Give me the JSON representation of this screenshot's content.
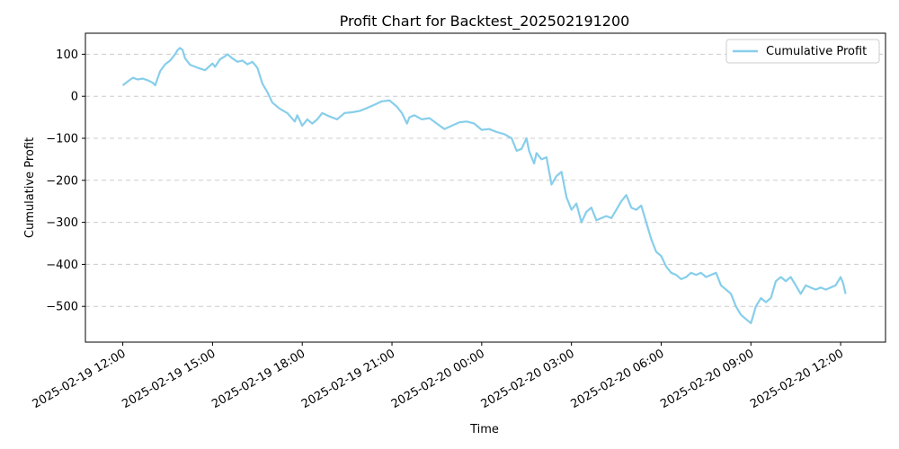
{
  "chart_data": {
    "type": "line",
    "title": "Profit Chart for Backtest_202502191200",
    "xlabel": "Time",
    "ylabel": "Cumulative Profit",
    "x_range": [
      "2025-02-19 10:45",
      "2025-02-20 13:30"
    ],
    "ylim": [
      -585,
      150
    ],
    "x_ticks": [
      "2025-02-19 12:00",
      "2025-02-19 15:00",
      "2025-02-19 18:00",
      "2025-02-19 21:00",
      "2025-02-20 00:00",
      "2025-02-20 03:00",
      "2025-02-20 06:00",
      "2025-02-20 09:00",
      "2025-02-20 12:00"
    ],
    "y_ticks": [
      100,
      0,
      -100,
      -200,
      -300,
      -400,
      -500
    ],
    "y_tick_labels": [
      "100",
      "0",
      "−100",
      "−200",
      "−300",
      "−400",
      "−500"
    ],
    "grid": "horizontal dashed",
    "legend_position": "top-right",
    "line_color": "#87ceeb",
    "series": [
      {
        "name": "Cumulative Profit",
        "points": [
          [
            "2025-02-19 12:00",
            26
          ],
          [
            "2025-02-19 12:10",
            35
          ],
          [
            "2025-02-19 12:20",
            44
          ],
          [
            "2025-02-19 12:30",
            40
          ],
          [
            "2025-02-19 12:40",
            42
          ],
          [
            "2025-02-19 12:50",
            38
          ],
          [
            "2025-02-19 13:00",
            32
          ],
          [
            "2025-02-19 13:05",
            26
          ],
          [
            "2025-02-19 13:15",
            60
          ],
          [
            "2025-02-19 13:25",
            76
          ],
          [
            "2025-02-19 13:35",
            85
          ],
          [
            "2025-02-19 13:45",
            100
          ],
          [
            "2025-02-19 13:50",
            110
          ],
          [
            "2025-02-19 13:55",
            115
          ],
          [
            "2025-02-19 14:00",
            110
          ],
          [
            "2025-02-19 14:05",
            90
          ],
          [
            "2025-02-19 14:15",
            75
          ],
          [
            "2025-02-19 14:30",
            68
          ],
          [
            "2025-02-19 14:45",
            62
          ],
          [
            "2025-02-19 15:00",
            78
          ],
          [
            "2025-02-19 15:05",
            70
          ],
          [
            "2025-02-19 15:15",
            88
          ],
          [
            "2025-02-19 15:25",
            95
          ],
          [
            "2025-02-19 15:30",
            100
          ],
          [
            "2025-02-19 15:40",
            90
          ],
          [
            "2025-02-19 15:50",
            82
          ],
          [
            "2025-02-19 16:00",
            85
          ],
          [
            "2025-02-19 16:10",
            76
          ],
          [
            "2025-02-19 16:20",
            82
          ],
          [
            "2025-02-19 16:30",
            68
          ],
          [
            "2025-02-19 16:40",
            30
          ],
          [
            "2025-02-19 16:50",
            10
          ],
          [
            "2025-02-19 17:00",
            -15
          ],
          [
            "2025-02-19 17:15",
            -30
          ],
          [
            "2025-02-19 17:30",
            -40
          ],
          [
            "2025-02-19 17:45",
            -60
          ],
          [
            "2025-02-19 17:50",
            -45
          ],
          [
            "2025-02-19 18:00",
            -70
          ],
          [
            "2025-02-19 18:10",
            -55
          ],
          [
            "2025-02-19 18:20",
            -65
          ],
          [
            "2025-02-19 18:30",
            -55
          ],
          [
            "2025-02-19 18:40",
            -40
          ],
          [
            "2025-02-19 18:55",
            -48
          ],
          [
            "2025-02-19 19:10",
            -55
          ],
          [
            "2025-02-19 19:25",
            -40
          ],
          [
            "2025-02-19 19:40",
            -38
          ],
          [
            "2025-02-19 19:55",
            -35
          ],
          [
            "2025-02-19 20:10",
            -28
          ],
          [
            "2025-02-19 20:25",
            -20
          ],
          [
            "2025-02-19 20:40",
            -12
          ],
          [
            "2025-02-19 20:55",
            -10
          ],
          [
            "2025-02-19 21:10",
            -25
          ],
          [
            "2025-02-19 21:20",
            -40
          ],
          [
            "2025-02-19 21:30",
            -65
          ],
          [
            "2025-02-19 21:35",
            -50
          ],
          [
            "2025-02-19 21:45",
            -45
          ],
          [
            "2025-02-19 22:00",
            -55
          ],
          [
            "2025-02-19 22:15",
            -52
          ],
          [
            "2025-02-19 22:30",
            -65
          ],
          [
            "2025-02-19 22:45",
            -78
          ],
          [
            "2025-02-19 23:00",
            -70
          ],
          [
            "2025-02-19 23:15",
            -62
          ],
          [
            "2025-02-19 23:30",
            -60
          ],
          [
            "2025-02-19 23:45",
            -65
          ],
          [
            "2025-02-20 00:00",
            -80
          ],
          [
            "2025-02-20 00:15",
            -78
          ],
          [
            "2025-02-20 00:30",
            -85
          ],
          [
            "2025-02-20 00:45",
            -90
          ],
          [
            "2025-02-20 01:00",
            -100
          ],
          [
            "2025-02-20 01:10",
            -130
          ],
          [
            "2025-02-20 01:20",
            -125
          ],
          [
            "2025-02-20 01:30",
            -100
          ],
          [
            "2025-02-20 01:35",
            -130
          ],
          [
            "2025-02-20 01:45",
            -160
          ],
          [
            "2025-02-20 01:50",
            -135
          ],
          [
            "2025-02-20 02:00",
            -150
          ],
          [
            "2025-02-20 02:10",
            -145
          ],
          [
            "2025-02-20 02:20",
            -210
          ],
          [
            "2025-02-20 02:30",
            -190
          ],
          [
            "2025-02-20 02:40",
            -180
          ],
          [
            "2025-02-20 02:50",
            -240
          ],
          [
            "2025-02-20 03:00",
            -270
          ],
          [
            "2025-02-20 03:10",
            -255
          ],
          [
            "2025-02-20 03:20",
            -300
          ],
          [
            "2025-02-20 03:30",
            -275
          ],
          [
            "2025-02-20 03:40",
            -265
          ],
          [
            "2025-02-20 03:50",
            -295
          ],
          [
            "2025-02-20 04:00",
            -290
          ],
          [
            "2025-02-20 04:10",
            -285
          ],
          [
            "2025-02-20 04:20",
            -290
          ],
          [
            "2025-02-20 04:30",
            -270
          ],
          [
            "2025-02-20 04:40",
            -250
          ],
          [
            "2025-02-20 04:50",
            -235
          ],
          [
            "2025-02-20 05:00",
            -265
          ],
          [
            "2025-02-20 05:10",
            -270
          ],
          [
            "2025-02-20 05:20",
            -260
          ],
          [
            "2025-02-20 05:30",
            -300
          ],
          [
            "2025-02-20 05:40",
            -340
          ],
          [
            "2025-02-20 05:50",
            -370
          ],
          [
            "2025-02-20 06:00",
            -380
          ],
          [
            "2025-02-20 06:10",
            -405
          ],
          [
            "2025-02-20 06:20",
            -420
          ],
          [
            "2025-02-20 06:30",
            -425
          ],
          [
            "2025-02-20 06:40",
            -435
          ],
          [
            "2025-02-20 06:50",
            -430
          ],
          [
            "2025-02-20 07:00",
            -420
          ],
          [
            "2025-02-20 07:10",
            -425
          ],
          [
            "2025-02-20 07:20",
            -420
          ],
          [
            "2025-02-20 07:30",
            -430
          ],
          [
            "2025-02-20 07:40",
            -425
          ],
          [
            "2025-02-20 07:50",
            -420
          ],
          [
            "2025-02-20 08:00",
            -450
          ],
          [
            "2025-02-20 08:10",
            -460
          ],
          [
            "2025-02-20 08:20",
            -470
          ],
          [
            "2025-02-20 08:30",
            -500
          ],
          [
            "2025-02-20 08:40",
            -520
          ],
          [
            "2025-02-20 08:50",
            -530
          ],
          [
            "2025-02-20 09:00",
            -540
          ],
          [
            "2025-02-20 09:10",
            -500
          ],
          [
            "2025-02-20 09:20",
            -480
          ],
          [
            "2025-02-20 09:30",
            -490
          ],
          [
            "2025-02-20 09:40",
            -480
          ],
          [
            "2025-02-20 09:50",
            -440
          ],
          [
            "2025-02-20 10:00",
            -430
          ],
          [
            "2025-02-20 10:10",
            -440
          ],
          [
            "2025-02-20 10:20",
            -430
          ],
          [
            "2025-02-20 10:30",
            -450
          ],
          [
            "2025-02-20 10:40",
            -470
          ],
          [
            "2025-02-20 10:50",
            -450
          ],
          [
            "2025-02-20 11:00",
            -455
          ],
          [
            "2025-02-20 11:10",
            -460
          ],
          [
            "2025-02-20 11:20",
            -455
          ],
          [
            "2025-02-20 11:30",
            -460
          ],
          [
            "2025-02-20 11:40",
            -455
          ],
          [
            "2025-02-20 11:50",
            -450
          ],
          [
            "2025-02-20 12:00",
            -430
          ],
          [
            "2025-02-20 12:05",
            -445
          ],
          [
            "2025-02-20 12:10",
            -470
          ]
        ]
      }
    ]
  }
}
